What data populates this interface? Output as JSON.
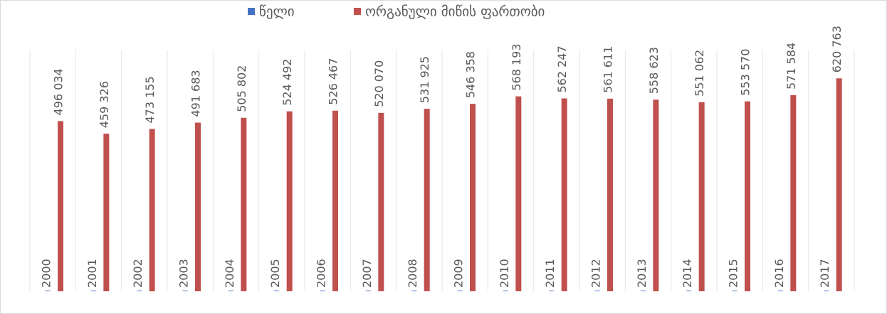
{
  "chart_data": {
    "type": "bar",
    "series": [
      {
        "name": "წელი",
        "color": "#4472c4",
        "values": [
          2000,
          2001,
          2002,
          2003,
          2004,
          2005,
          2006,
          2007,
          2008,
          2009,
          2010,
          2011,
          2012,
          2013,
          2014,
          2015,
          2016,
          2017
        ]
      },
      {
        "name": "ორგანული მიწის ფართობი",
        "color": "#c0504d",
        "values": [
          496034,
          459326,
          473155,
          491683,
          505802,
          524492,
          526467,
          520070,
          531925,
          546358,
          568193,
          562247,
          561611,
          558623,
          551062,
          553570,
          571584,
          620763
        ],
        "value_labels": [
          "496 034",
          "459 326",
          "473 155",
          "491 683",
          "505 802",
          "524 492",
          "526 467",
          "520 070",
          "531 925",
          "546 358",
          "568 193",
          "562 247",
          "561 611",
          "558 623",
          "551 062",
          "553 570",
          "571 584",
          "620 763"
        ]
      }
    ],
    "ylim": [
      0,
      700000
    ],
    "legend": "top"
  }
}
